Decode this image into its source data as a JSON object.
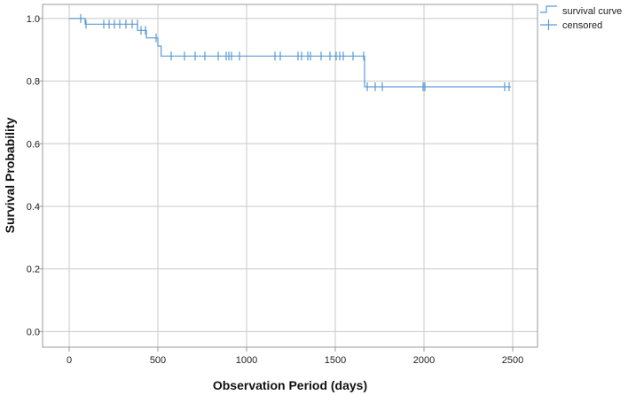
{
  "chart_data": {
    "type": "line",
    "xlabel": "Observation Period (days)",
    "ylabel": "Survival Probability",
    "xlim": [
      -150,
      2640
    ],
    "ylim": [
      -0.05,
      1.045
    ],
    "x_ticks": [
      0,
      500,
      1000,
      1500,
      2000,
      2500
    ],
    "x_tick_labels": [
      "0",
      "500",
      "1000",
      "1500",
      "2000",
      "2500"
    ],
    "y_ticks": [
      0.0,
      0.2,
      0.4,
      0.6,
      0.8,
      1.0
    ],
    "y_tick_labels": [
      "0.0",
      "0.2",
      "0.4",
      "0.6",
      "0.8",
      "1.0"
    ],
    "grid": true,
    "legend_position": "top-right",
    "color": "#5b9bd5",
    "series": [
      {
        "name": "survival curve",
        "step_points": [
          [
            0,
            1.0
          ],
          [
            90,
            1.0
          ],
          [
            90,
            0.982
          ],
          [
            385,
            0.982
          ],
          [
            385,
            0.962
          ],
          [
            435,
            0.962
          ],
          [
            435,
            0.938
          ],
          [
            500,
            0.938
          ],
          [
            500,
            0.912
          ],
          [
            518,
            0.912
          ],
          [
            518,
            0.88
          ],
          [
            1665,
            0.88
          ],
          [
            1665,
            0.782
          ],
          [
            2490,
            0.782
          ]
        ]
      },
      {
        "name": "censored",
        "points": [
          [
            65,
            1.0
          ],
          [
            95,
            0.982
          ],
          [
            195,
            0.982
          ],
          [
            225,
            0.982
          ],
          [
            255,
            0.982
          ],
          [
            285,
            0.982
          ],
          [
            320,
            0.982
          ],
          [
            355,
            0.982
          ],
          [
            385,
            0.982
          ],
          [
            405,
            0.962
          ],
          [
            430,
            0.962
          ],
          [
            490,
            0.938
          ],
          [
            575,
            0.88
          ],
          [
            650,
            0.88
          ],
          [
            710,
            0.88
          ],
          [
            765,
            0.88
          ],
          [
            840,
            0.88
          ],
          [
            885,
            0.88
          ],
          [
            900,
            0.88
          ],
          [
            915,
            0.88
          ],
          [
            960,
            0.88
          ],
          [
            1160,
            0.88
          ],
          [
            1190,
            0.88
          ],
          [
            1290,
            0.88
          ],
          [
            1310,
            0.88
          ],
          [
            1345,
            0.88
          ],
          [
            1360,
            0.88
          ],
          [
            1420,
            0.88
          ],
          [
            1470,
            0.88
          ],
          [
            1505,
            0.88
          ],
          [
            1525,
            0.88
          ],
          [
            1545,
            0.88
          ],
          [
            1600,
            0.88
          ],
          [
            1660,
            0.88
          ],
          [
            1680,
            0.782
          ],
          [
            1725,
            0.782
          ],
          [
            1765,
            0.782
          ],
          [
            1995,
            0.782
          ],
          [
            2005,
            0.782
          ],
          [
            2455,
            0.782
          ],
          [
            2480,
            0.782
          ]
        ]
      }
    ]
  }
}
